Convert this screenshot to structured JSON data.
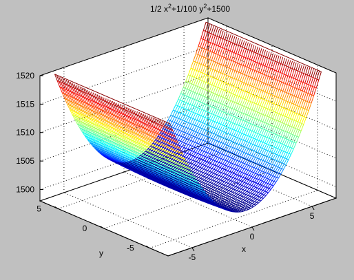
{
  "chart_data": {
    "type": "surface-mesh",
    "title": "1/2 x²+1/100 y²+1500",
    "title_parts": {
      "a": "1/2 x",
      "b": "2",
      "c": "+1/100 y",
      "d": "2",
      "e": "+1500"
    },
    "function": "z = 0.5*x^2 + 0.01*y^2 + 1500",
    "xlabel": "x",
    "ylabel": "y",
    "zlabel": "",
    "xlim": [
      -7,
      7
    ],
    "ylim": [
      -7,
      7
    ],
    "zlim": [
      1498,
      1520
    ],
    "mesh_x_range": [
      -6.3,
      6.3
    ],
    "mesh_y_range": [
      -6.3,
      6.3
    ],
    "z_clip": 1520,
    "x_ticks": [
      -5,
      0,
      5
    ],
    "y_ticks": [
      -5,
      0,
      5
    ],
    "z_ticks": [
      1500,
      1505,
      1510,
      1515,
      1520
    ],
    "x_tick_labels": [
      "-5",
      "0",
      "5"
    ],
    "y_tick_labels": [
      "-5",
      "0",
      "5"
    ],
    "z_tick_labels": [
      "1500",
      "1505",
      "1510",
      "1515",
      "1520"
    ],
    "colormap": "jet",
    "grid": true,
    "box": "back-faces",
    "background_color": "#c0c0c0",
    "axes_color": "#ffffff"
  }
}
